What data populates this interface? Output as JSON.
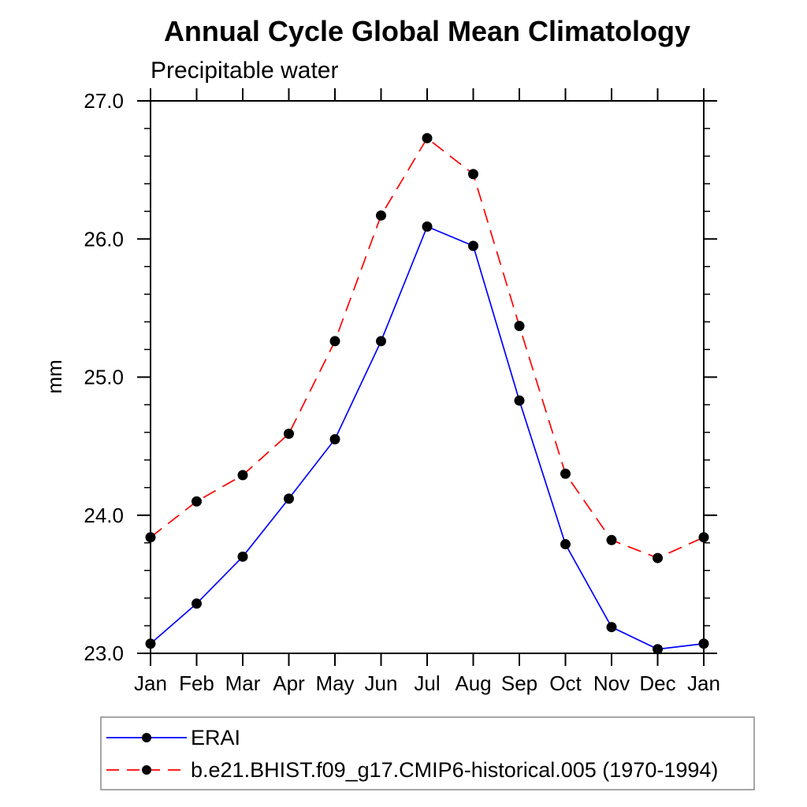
{
  "page": {
    "background": "#ffffff",
    "frame_color": "#000000",
    "legend_border_color": "#888888"
  },
  "chart_data": {
    "type": "line",
    "title": "Annual Cycle Global Mean Climatology",
    "subtitle": "Precipitable water",
    "xlabel": "",
    "ylabel": "mm",
    "ylim": [
      23.0,
      27.0
    ],
    "ytick_major": [
      23.0,
      24.0,
      25.0,
      26.0,
      27.0
    ],
    "ytick_labels": [
      "23.0",
      "24.0",
      "25.0",
      "26.0",
      "27.0"
    ],
    "ytick_minor_step": 0.2,
    "categories": [
      "Jan",
      "Feb",
      "Mar",
      "Apr",
      "May",
      "Jun",
      "Jul",
      "Aug",
      "Sep",
      "Oct",
      "Nov",
      "Dec",
      "Jan"
    ],
    "grid": false,
    "legend_position": "bottom-left-box",
    "marker": "filled-circle",
    "marker_color": "#000000",
    "series": [
      {
        "name": "ERAI",
        "color": "#0000ff",
        "style": "solid",
        "values": [
          23.07,
          23.36,
          23.7,
          24.12,
          24.55,
          25.26,
          26.09,
          25.95,
          24.83,
          23.79,
          23.19,
          23.03,
          23.07
        ]
      },
      {
        "name": "b.e21.BHIST.f09_g17.CMIP6-historical.005 (1970-1994)",
        "color": "#ff0000",
        "style": "dashed",
        "values": [
          23.84,
          24.1,
          24.29,
          24.59,
          25.26,
          26.17,
          26.73,
          26.47,
          25.37,
          24.3,
          23.82,
          23.69,
          23.84
        ]
      }
    ]
  }
}
